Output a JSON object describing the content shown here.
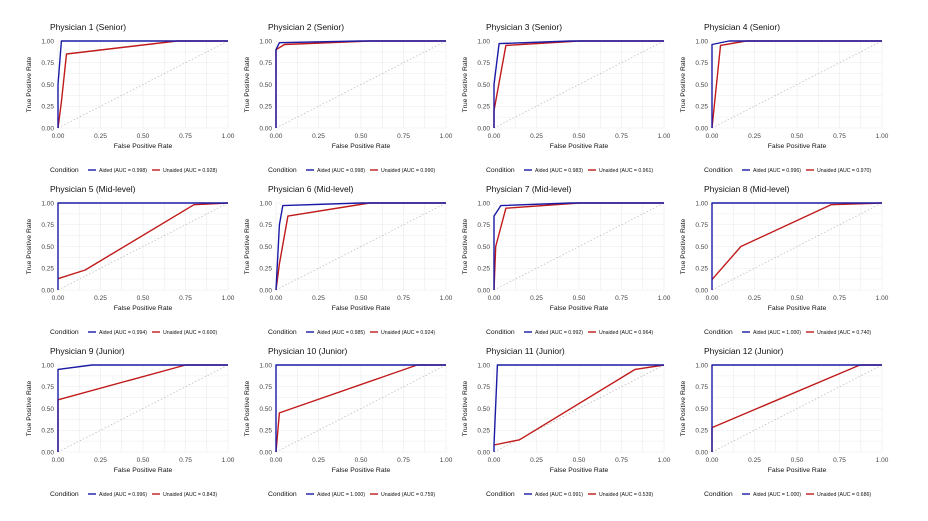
{
  "chart_data": [
    {
      "type": "line",
      "title": "Physician 1 (Senior)",
      "xlabel": "False Positive Rate",
      "ylabel": "True Positive Rate",
      "xlim": [
        0,
        1
      ],
      "ylim": [
        0,
        1
      ],
      "ticks": [
        "0.00",
        "0.25",
        "0.50",
        "0.75",
        "1.00"
      ],
      "legend_title": "Condition",
      "series": [
        {
          "name": "Aided (AUC = 0.998)",
          "color": "#1a1aa6",
          "points": [
            [
              0,
              0
            ],
            [
              0,
              0.5
            ],
            [
              0.02,
              1.0
            ],
            [
              0.7,
              1.0
            ],
            [
              1,
              1
            ]
          ]
        },
        {
          "name": "Unaided (AUC = 0.928)",
          "color": "#c01a1a",
          "points": [
            [
              0,
              0
            ],
            [
              0.02,
              0.3
            ],
            [
              0.05,
              0.85
            ],
            [
              0.7,
              1.0
            ],
            [
              1,
              1
            ]
          ]
        }
      ]
    },
    {
      "type": "line",
      "title": "Physician 2 (Senior)",
      "xlabel": "False Positive Rate",
      "ylabel": "True Positive Rate",
      "xlim": [
        0,
        1
      ],
      "ylim": [
        0,
        1
      ],
      "ticks": [
        "0.00",
        "0.25",
        "0.50",
        "0.75",
        "1.00"
      ],
      "legend_title": "Condition",
      "series": [
        {
          "name": "Aided (AUC = 0.998)",
          "color": "#1a1aa6",
          "points": [
            [
              0,
              0
            ],
            [
              0,
              0.9
            ],
            [
              0.02,
              0.98
            ],
            [
              0.5,
              1.0
            ],
            [
              1,
              1
            ]
          ]
        },
        {
          "name": "Unaided (AUC = 0.990)",
          "color": "#c01a1a",
          "points": [
            [
              0,
              0
            ],
            [
              0,
              0.9
            ],
            [
              0.05,
              0.96
            ],
            [
              0.55,
              1.0
            ],
            [
              1,
              1
            ]
          ]
        }
      ]
    },
    {
      "type": "line",
      "title": "Physician 3 (Senior)",
      "xlabel": "False Positive Rate",
      "ylabel": "True Positive Rate",
      "xlim": [
        0,
        1
      ],
      "ylim": [
        0,
        1
      ],
      "ticks": [
        "0.00",
        "0.25",
        "0.50",
        "0.75",
        "1.00"
      ],
      "legend_title": "Condition",
      "series": [
        {
          "name": "Aided (AUC = 0.983)",
          "color": "#1a1aa6",
          "points": [
            [
              0,
              0
            ],
            [
              0,
              0.5
            ],
            [
              0.03,
              0.97
            ],
            [
              0.45,
              1.0
            ],
            [
              1,
              1
            ]
          ]
        },
        {
          "name": "Unaided (AUC = 0.961)",
          "color": "#c01a1a",
          "points": [
            [
              0,
              0
            ],
            [
              0,
              0.2
            ],
            [
              0.07,
              0.95
            ],
            [
              0.5,
              1.0
            ],
            [
              1,
              1
            ]
          ]
        }
      ]
    },
    {
      "type": "line",
      "title": "Physician 4 (Senior)",
      "xlabel": "False Positive Rate",
      "ylabel": "True Positive Rate",
      "xlim": [
        0,
        1
      ],
      "ylim": [
        0,
        1
      ],
      "ticks": [
        "0.00",
        "0.25",
        "0.50",
        "0.75",
        "1.00"
      ],
      "legend_title": "Condition",
      "series": [
        {
          "name": "Aided (AUC = 0.996)",
          "color": "#1a1aa6",
          "points": [
            [
              0,
              0
            ],
            [
              0,
              0.96
            ],
            [
              0.1,
              1.0
            ],
            [
              1,
              1
            ]
          ]
        },
        {
          "name": "Unaided (AUC = 0.970)",
          "color": "#c01a1a",
          "points": [
            [
              0,
              0
            ],
            [
              0.05,
              0.95
            ],
            [
              0.2,
              1.0
            ],
            [
              1,
              1
            ]
          ]
        }
      ]
    },
    {
      "type": "line",
      "title": "Physician 5 (Mid-level)",
      "xlabel": "False Positive Rate",
      "ylabel": "True Positive Rate",
      "xlim": [
        0,
        1
      ],
      "ylim": [
        0,
        1
      ],
      "ticks": [
        "0.00",
        "0.25",
        "0.50",
        "0.75",
        "1.00"
      ],
      "legend_title": "Condition",
      "series": [
        {
          "name": "Aided (AUC = 0.994)",
          "color": "#1a1aa6",
          "points": [
            [
              0,
              0
            ],
            [
              0,
              1.0
            ],
            [
              0.8,
              1.0
            ],
            [
              1,
              1
            ]
          ]
        },
        {
          "name": "Unaided (AUC = 0.600)",
          "color": "#c01a1a",
          "points": [
            [
              0,
              0.13
            ],
            [
              0.16,
              0.23
            ],
            [
              0.8,
              0.98
            ],
            [
              1,
              1
            ]
          ]
        }
      ]
    },
    {
      "type": "line",
      "title": "Physician 6 (Mid-level)",
      "xlabel": "False Positive Rate",
      "ylabel": "True Positive Rate",
      "xlim": [
        0,
        1
      ],
      "ylim": [
        0,
        1
      ],
      "ticks": [
        "0.00",
        "0.25",
        "0.50",
        "0.75",
        "1.00"
      ],
      "legend_title": "Condition",
      "series": [
        {
          "name": "Aided (AUC = 0.985)",
          "color": "#1a1aa6",
          "points": [
            [
              0,
              0
            ],
            [
              0.02,
              0.75
            ],
            [
              0.04,
              0.97
            ],
            [
              0.5,
              1.0
            ],
            [
              1,
              1
            ]
          ]
        },
        {
          "name": "Unaided (AUC = 0.924)",
          "color": "#c01a1a",
          "points": [
            [
              0,
              0
            ],
            [
              0.02,
              0.3
            ],
            [
              0.07,
              0.85
            ],
            [
              0.55,
              1.0
            ],
            [
              1,
              1
            ]
          ]
        }
      ]
    },
    {
      "type": "line",
      "title": "Physician 7 (Mid-level)",
      "xlabel": "False Positive Rate",
      "ylabel": "True Positive Rate",
      "xlim": [
        0,
        1
      ],
      "ylim": [
        0,
        1
      ],
      "ticks": [
        "0.00",
        "0.25",
        "0.50",
        "0.75",
        "1.00"
      ],
      "legend_title": "Condition",
      "series": [
        {
          "name": "Aided (AUC = 0.992)",
          "color": "#1a1aa6",
          "points": [
            [
              0,
              0
            ],
            [
              0,
              0.85
            ],
            [
              0.04,
              0.97
            ],
            [
              0.45,
              1.0
            ],
            [
              1,
              1
            ]
          ]
        },
        {
          "name": "Unaided (AUC = 0.964)",
          "color": "#c01a1a",
          "points": [
            [
              0,
              0
            ],
            [
              0.01,
              0.5
            ],
            [
              0.07,
              0.94
            ],
            [
              0.5,
              1.0
            ],
            [
              1,
              1
            ]
          ]
        }
      ]
    },
    {
      "type": "line",
      "title": "Physician 8 (Mid-level)",
      "xlabel": "False Positive Rate",
      "ylabel": "True Positive Rate",
      "xlim": [
        0,
        1
      ],
      "ylim": [
        0,
        1
      ],
      "ticks": [
        "0.00",
        "0.25",
        "0.50",
        "0.75",
        "1.00"
      ],
      "legend_title": "Condition",
      "series": [
        {
          "name": "Aided (AUC = 1.000)",
          "color": "#1a1aa6",
          "points": [
            [
              0,
              0
            ],
            [
              0,
              1.0
            ],
            [
              1,
              1
            ]
          ]
        },
        {
          "name": "Unaided (AUC = 0.740)",
          "color": "#c01a1a",
          "points": [
            [
              0,
              0.12
            ],
            [
              0.17,
              0.5
            ],
            [
              0.7,
              0.98
            ],
            [
              1,
              1
            ]
          ]
        }
      ]
    },
    {
      "type": "line",
      "title": "Physician 9 (Junior)",
      "xlabel": "False Positive Rate",
      "ylabel": "True Positive Rate",
      "xlim": [
        0,
        1
      ],
      "ylim": [
        0,
        1
      ],
      "ticks": [
        "0.00",
        "0.25",
        "0.50",
        "0.75",
        "1.00"
      ],
      "legend_title": "Condition",
      "series": [
        {
          "name": "Aided (AUC = 0.996)",
          "color": "#1a1aa6",
          "points": [
            [
              0,
              0
            ],
            [
              0,
              0.95
            ],
            [
              0.2,
              1.0
            ],
            [
              1,
              1
            ]
          ]
        },
        {
          "name": "Unaided (AUC = 0.843)",
          "color": "#c01a1a",
          "points": [
            [
              0,
              0
            ],
            [
              0,
              0.6
            ],
            [
              0.75,
              1.0
            ],
            [
              1,
              1
            ]
          ]
        }
      ]
    },
    {
      "type": "line",
      "title": "Physician 10 (Junior)",
      "xlabel": "False Positive Rate",
      "ylabel": "True Positive Rate",
      "xlim": [
        0,
        1
      ],
      "ylim": [
        0,
        1
      ],
      "ticks": [
        "0.00",
        "0.25",
        "0.50",
        "0.75",
        "1.00"
      ],
      "legend_title": "Condition",
      "series": [
        {
          "name": "Aided (AUC = 1.000)",
          "color": "#1a1aa6",
          "points": [
            [
              0,
              0
            ],
            [
              0,
              1.0
            ],
            [
              1,
              1
            ]
          ]
        },
        {
          "name": "Unaided (AUC = 0.759)",
          "color": "#c01a1a",
          "points": [
            [
              0,
              0
            ],
            [
              0.02,
              0.45
            ],
            [
              0.83,
              1.0
            ],
            [
              1,
              1
            ]
          ]
        }
      ]
    },
    {
      "type": "line",
      "title": "Physician 11 (Junior)",
      "xlabel": "False Positive Rate",
      "ylabel": "True Positive Rate",
      "xlim": [
        0,
        1
      ],
      "ylim": [
        0,
        1
      ],
      "ticks": [
        "0.00",
        "0.25",
        "0.50",
        "0.75",
        "1.00"
      ],
      "legend_title": "Condition",
      "series": [
        {
          "name": "Aided (AUC = 0.991)",
          "color": "#1a1aa6",
          "points": [
            [
              0,
              0
            ],
            [
              0,
              0.08
            ],
            [
              0.02,
              1.0
            ],
            [
              1,
              1
            ]
          ]
        },
        {
          "name": "Unaided (AUC = 0.539)",
          "color": "#c01a1a",
          "points": [
            [
              0,
              0.08
            ],
            [
              0.15,
              0.14
            ],
            [
              0.83,
              0.95
            ],
            [
              1,
              1
            ]
          ]
        }
      ]
    },
    {
      "type": "line",
      "title": "Physician 12 (Junior)",
      "xlabel": "False Positive Rate",
      "ylabel": "True Positive Rate",
      "xlim": [
        0,
        1
      ],
      "ylim": [
        0,
        1
      ],
      "ticks": [
        "0.00",
        "0.25",
        "0.50",
        "0.75",
        "1.00"
      ],
      "legend_title": "Condition",
      "series": [
        {
          "name": "Aided (AUC = 1.000)",
          "color": "#1a1aa6",
          "points": [
            [
              0,
              0
            ],
            [
              0,
              1.0
            ],
            [
              1,
              1
            ]
          ]
        },
        {
          "name": "Unaided (AUC = 0.686)",
          "color": "#c01a1a",
          "points": [
            [
              0,
              0
            ],
            [
              0,
              0.28
            ],
            [
              0.87,
              1.0
            ],
            [
              1,
              1
            ]
          ]
        }
      ]
    }
  ]
}
